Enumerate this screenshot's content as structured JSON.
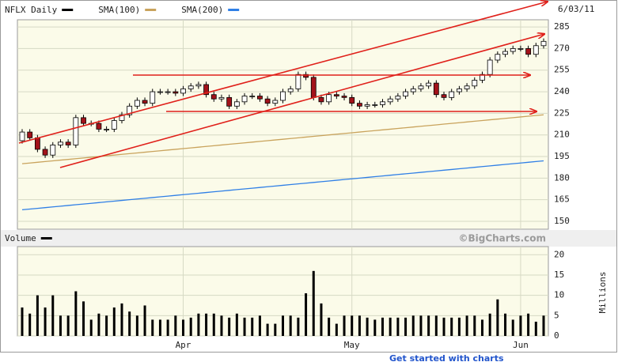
{
  "chart_data": [
    {
      "type": "candlestick",
      "series": [
        {
          "name": "NFLX Daily",
          "color": "#000000",
          "open": [
            206,
            212,
            208,
            200,
            196,
            203,
            205,
            203,
            222,
            218,
            218,
            214,
            214,
            220,
            224,
            230,
            234,
            232,
            240,
            240,
            240,
            239,
            242,
            244,
            245,
            238,
            235,
            236,
            230,
            233,
            237,
            237,
            235,
            232,
            234,
            240,
            242,
            252,
            250,
            236,
            233,
            238,
            237,
            236,
            232,
            230,
            231,
            231,
            233,
            235,
            237,
            240,
            242,
            244,
            246,
            238,
            236,
            240,
            242,
            244,
            248,
            252,
            262,
            266,
            268,
            270,
            270,
            266,
            272
          ],
          "high": [
            214,
            214,
            210,
            202,
            205,
            207,
            207,
            224,
            224,
            220,
            220,
            216,
            222,
            226,
            232,
            236,
            236,
            242,
            242,
            242,
            242,
            244,
            246,
            247,
            247,
            240,
            238,
            238,
            235,
            239,
            239,
            239,
            237,
            236,
            242,
            244,
            254,
            254,
            252,
            238,
            240,
            240,
            239,
            238,
            234,
            233,
            233,
            235,
            237,
            239,
            242,
            244,
            246,
            248,
            248,
            240,
            242,
            244,
            246,
            250,
            254,
            264,
            268,
            270,
            272,
            272,
            272,
            274,
            277
          ],
          "low": [
            204,
            206,
            198,
            194,
            194,
            201,
            201,
            201,
            216,
            216,
            212,
            212,
            212,
            218,
            222,
            228,
            230,
            230,
            238,
            238,
            237,
            237,
            240,
            242,
            236,
            233,
            233,
            228,
            228,
            231,
            235,
            233,
            230,
            230,
            232,
            238,
            240,
            248,
            234,
            231,
            231,
            235,
            234,
            230,
            228,
            228,
            229,
            229,
            231,
            233,
            235,
            238,
            240,
            242,
            236,
            234,
            234,
            238,
            240,
            242,
            246,
            250,
            260,
            264,
            266,
            268,
            264,
            264,
            270
          ],
          "close": [
            212,
            208,
            200,
            196,
            203,
            205,
            203,
            222,
            218,
            218,
            214,
            214,
            220,
            224,
            230,
            234,
            232,
            240,
            240,
            240,
            239,
            242,
            244,
            245,
            238,
            235,
            236,
            230,
            233,
            237,
            237,
            235,
            232,
            234,
            240,
            242,
            252,
            250,
            236,
            233,
            238,
            237,
            236,
            232,
            230,
            231,
            231,
            233,
            235,
            237,
            240,
            242,
            244,
            246,
            238,
            236,
            240,
            242,
            244,
            248,
            252,
            262,
            266,
            268,
            270,
            270,
            266,
            272,
            275
          ]
        },
        {
          "name": "SMA(100)",
          "color": "#c9a35c",
          "values": [
            190,
            190.5,
            191,
            191.5,
            192,
            192.5,
            193,
            193.5,
            194,
            194.5,
            195,
            195.5,
            196,
            196.5,
            197,
            197.5,
            198,
            198.5,
            199,
            199.5,
            200,
            200.5,
            201,
            201.5,
            202,
            202.5,
            203,
            203.5,
            204,
            204.5,
            205,
            205.5,
            206,
            206.5,
            207,
            207.5,
            208,
            208.5,
            209,
            209.5,
            210,
            210.5,
            211,
            211.5,
            212,
            212.5,
            213,
            213.5,
            214,
            214.5,
            215,
            215.5,
            216,
            216.5,
            217,
            217.5,
            218,
            218.5,
            219,
            219.5,
            220,
            220.5,
            221,
            221.5,
            222,
            222.5,
            223,
            223.5,
            224
          ]
        },
        {
          "name": "SMA(200)",
          "color": "#2f7fe6",
          "values": [
            158,
            158.5,
            159,
            159.5,
            160,
            160.5,
            161,
            161.5,
            162,
            162.5,
            163,
            163.5,
            164,
            164.5,
            165,
            165.5,
            166,
            166.5,
            167,
            167.5,
            168,
            168.5,
            169,
            169.5,
            170,
            170.5,
            171,
            171.5,
            172,
            172.5,
            173,
            173.5,
            174,
            174.5,
            175,
            175.5,
            176,
            176.5,
            177,
            177.5,
            178,
            178.5,
            179,
            179.5,
            180,
            180.5,
            181,
            181.5,
            182,
            182.5,
            183,
            183.5,
            184,
            184.5,
            185,
            185.5,
            186,
            186.5,
            187,
            187.5,
            188,
            188.5,
            189,
            189.5,
            190,
            190.5,
            191,
            191.5,
            192
          ]
        }
      ],
      "date_label": "6/03/11",
      "ylim": [
        144.5,
        290
      ],
      "yticks": [
        150,
        165,
        180,
        195,
        210,
        225,
        240,
        255,
        270,
        285
      ],
      "grid": true
    },
    {
      "type": "bar",
      "title": "Volume",
      "color": "#000000",
      "watermark": "©BigCharts.com",
      "ylabel": "Millions",
      "categories": [
        null,
        null,
        null,
        null,
        null,
        null,
        null,
        null,
        null,
        null,
        null,
        null,
        null,
        null,
        null,
        null,
        null,
        null,
        null,
        null,
        null,
        "Apr",
        null,
        null,
        null,
        null,
        null,
        null,
        null,
        null,
        null,
        null,
        null,
        null,
        null,
        null,
        null,
        null,
        null,
        null,
        null,
        null,
        null,
        "May",
        null,
        null,
        null,
        null,
        null,
        null,
        null,
        null,
        null,
        null,
        null,
        null,
        null,
        null,
        null,
        null,
        null,
        null,
        null,
        null,
        null,
        "Jun",
        null,
        null,
        null
      ],
      "values": [
        7,
        5.5,
        10,
        7,
        10,
        5,
        5,
        11,
        8.5,
        4,
        5.5,
        5,
        7,
        8,
        6,
        5,
        7.5,
        4,
        4,
        4,
        5,
        4,
        4.5,
        5.5,
        5.5,
        5.5,
        5,
        4.5,
        5.5,
        4.5,
        4.5,
        5,
        3,
        3,
        5,
        5,
        4.5,
        10.5,
        16,
        8,
        4.5,
        3,
        5,
        5,
        5,
        4.5,
        4,
        4.5,
        4.5,
        4.5,
        4.5,
        5,
        5,
        5,
        5,
        4.5,
        4.5,
        4.5,
        5,
        5,
        4,
        5.5,
        9,
        5.5,
        4,
        5,
        5.5,
        3.5,
        5
      ],
      "ylim": [
        0,
        22
      ],
      "yticks": [
        0,
        5,
        10,
        15,
        20
      ],
      "grid": true
    }
  ],
  "footer_link": "Get started with charts"
}
